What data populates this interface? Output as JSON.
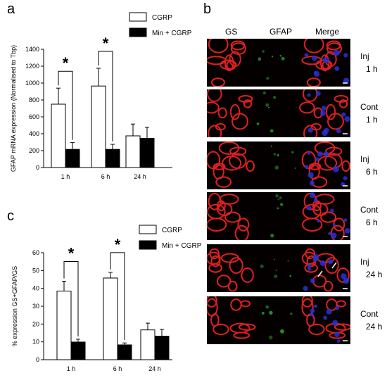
{
  "panel_labels": {
    "a": "a",
    "b": "b",
    "c": "c"
  },
  "chart_data": [
    {
      "type": "bar",
      "panel": "a",
      "title": "",
      "xlabel": "",
      "ylabel": "GFAP mRNA expression (Normalised to Tbp)",
      "categories": [
        "1 h",
        "6 h",
        "24 h"
      ],
      "ylim": [
        0,
        1400
      ],
      "yticks": [
        "0",
        "200",
        "400",
        "600",
        "800",
        "1000",
        "1200",
        "1400"
      ],
      "series": [
        {
          "name": "CGRP",
          "values": [
            750,
            965,
            375
          ],
          "errors": [
            190,
            210,
            140
          ],
          "color": "#ffffff"
        },
        {
          "name": "Min + CGRP",
          "values": [
            215,
            215,
            345
          ],
          "errors": [
            80,
            60,
            130
          ],
          "color": "#000000"
        }
      ],
      "significance": [
        {
          "category": "1 h",
          "label": "*"
        },
        {
          "category": "6 h",
          "label": "*"
        }
      ],
      "legend": "top-right"
    },
    {
      "type": "bar",
      "panel": "c",
      "title": "",
      "xlabel": "",
      "ylabel": "% expression GS+GFAP/GS",
      "categories": [
        "1 h",
        "6 h",
        "24 h"
      ],
      "ylim": [
        0,
        60
      ],
      "yticks": [
        "0",
        "10",
        "20",
        "30",
        "40",
        "50",
        "60"
      ],
      "series": [
        {
          "name": "CGRP",
          "values": [
            38.5,
            45.8,
            16.7
          ],
          "errors": [
            5.5,
            3.2,
            3.8
          ],
          "color": "#ffffff"
        },
        {
          "name": "Min + CGRP",
          "values": [
            9.9,
            8.3,
            13.2
          ],
          "errors": [
            1.6,
            1.1,
            3.8
          ],
          "color": "#000000"
        }
      ],
      "significance": [
        {
          "category": "1 h",
          "label": "*"
        },
        {
          "category": "6 h",
          "label": "*"
        }
      ],
      "legend": "top-right"
    }
  ],
  "micrograph": {
    "columns": [
      "GS",
      "GFAP",
      "Merge"
    ],
    "rows": [
      {
        "label_line1": "Inj",
        "label_line2": "1 h"
      },
      {
        "label_line1": "Cont",
        "label_line2": "1 h"
      },
      {
        "label_line1": "Inj",
        "label_line2": "6 h"
      },
      {
        "label_line1": "Cont",
        "label_line2": "6 h"
      },
      {
        "label_line1": "Inj",
        "label_line2": "24 h"
      },
      {
        "label_line1": "Cont",
        "label_line2": "24 h"
      }
    ],
    "channel_colors": {
      "gs": "#e02020",
      "gfap": "#2aa02a",
      "dapi": "#2830d8"
    }
  }
}
